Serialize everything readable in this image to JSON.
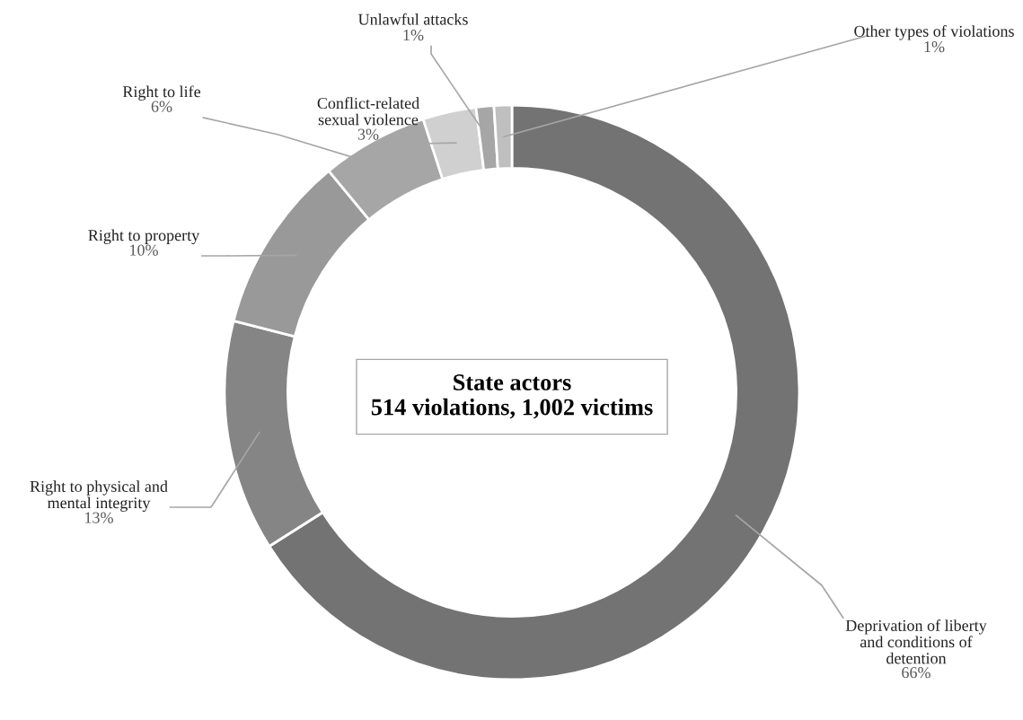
{
  "chart_data": {
    "type": "donut",
    "title": "State actors\n514 violations, 1,002 victims",
    "categories": [
      "Deprivation of liberty\nand conditions of\ndetention",
      "Right to physical and\nmental integrity",
      "Right to property",
      "Right to life",
      "Conflict-related\nsexual violence",
      "Unlawful attacks",
      "Other types of violations"
    ],
    "values": [
      66,
      13,
      10,
      6,
      3,
      1,
      1
    ],
    "value_labels": [
      "66%",
      "13%",
      "10%",
      "6%",
      "3%",
      "1%",
      "1%"
    ],
    "colors": [
      "#737373",
      "#858585",
      "#999999",
      "#a6a6a6",
      "#d0d0d0",
      "#a6a6a6",
      "#bfbfbf"
    ],
    "legend": false
  }
}
